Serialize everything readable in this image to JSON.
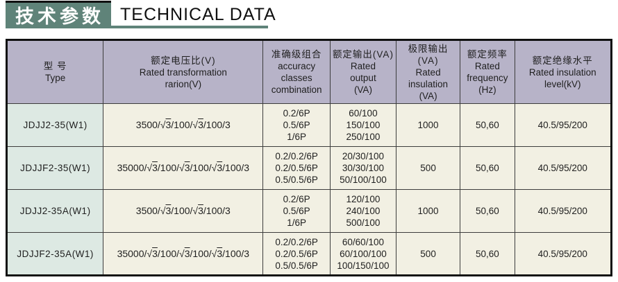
{
  "title": {
    "zh": "技术参数",
    "en": "TECHNICAL DATA"
  },
  "colors": {
    "accent_teal": "#5f8379",
    "header_bg": "#b7b3c8",
    "type_column_bg": "#dde9e3",
    "cell_bg": "#f2f0e3",
    "border_dark": "#101010"
  },
  "table": {
    "headers": [
      {
        "zh": "型  号",
        "en": "Type"
      },
      {
        "zh": "额定电压比(V)",
        "en": "Rated transformation\nrarion(V)"
      },
      {
        "zh": "准确级组合",
        "en": "accuracy\nclasses\ncombination"
      },
      {
        "zh": "额定输出(VA)",
        "en": "Rated\noutput\n(VA)"
      },
      {
        "zh": "极限输出(VA)",
        "en": "Rated\ninsulation\n(VA)"
      },
      {
        "zh": "额定频率",
        "en": "Rated\nfrequency\n(Hz)"
      },
      {
        "zh": "额定绝缘水平",
        "en": "Rated insulation\nlevel(kV)"
      }
    ],
    "rows": [
      {
        "type": "JDJJ2-35(W1)",
        "ratio": "3500/√3/100/√3/100/3",
        "accuracy": [
          "0.2/6P",
          "0.5/6P",
          "1/6P"
        ],
        "output": [
          "60/100",
          "150/100",
          "250/100"
        ],
        "limit_output_va": "1000",
        "frequency": "50,60",
        "insulation_level": "40.5/95/200"
      },
      {
        "type": "JDJJF2-35(W1)",
        "ratio": "35000/√3/100/√3/100/√3/100/3",
        "accuracy": [
          "0.2/0.2/6P",
          "0.2/0.5/6P",
          "0.5/0.5/6P"
        ],
        "output": [
          "20/30/100",
          "30/30/100",
          "50/100/100"
        ],
        "limit_output_va": "500",
        "frequency": "50,60",
        "insulation_level": "40.5/95/200"
      },
      {
        "type": "JDJJ2-35A(W1)",
        "ratio": "3500/√3/100/√3/100/3",
        "accuracy": [
          "0.2/6P",
          "0.5/6P",
          "1/6P"
        ],
        "output": [
          "120/100",
          "240/100",
          "500/100"
        ],
        "limit_output_va": "1000",
        "frequency": "50,60",
        "insulation_level": "40.5/95/200"
      },
      {
        "type": "JDJJF2-35A(W1)",
        "ratio": "35000/√3/100/√3/100/√3/100/3",
        "accuracy": [
          "0.2/0.2/6P",
          "0.2/0.5/6P",
          "0.5/0.5/6P"
        ],
        "output": [
          "60/60/100",
          "60/100/100",
          "100/150/100"
        ],
        "limit_output_va": "500",
        "frequency": "50,60",
        "insulation_level": "40.5/95/200"
      }
    ]
  }
}
